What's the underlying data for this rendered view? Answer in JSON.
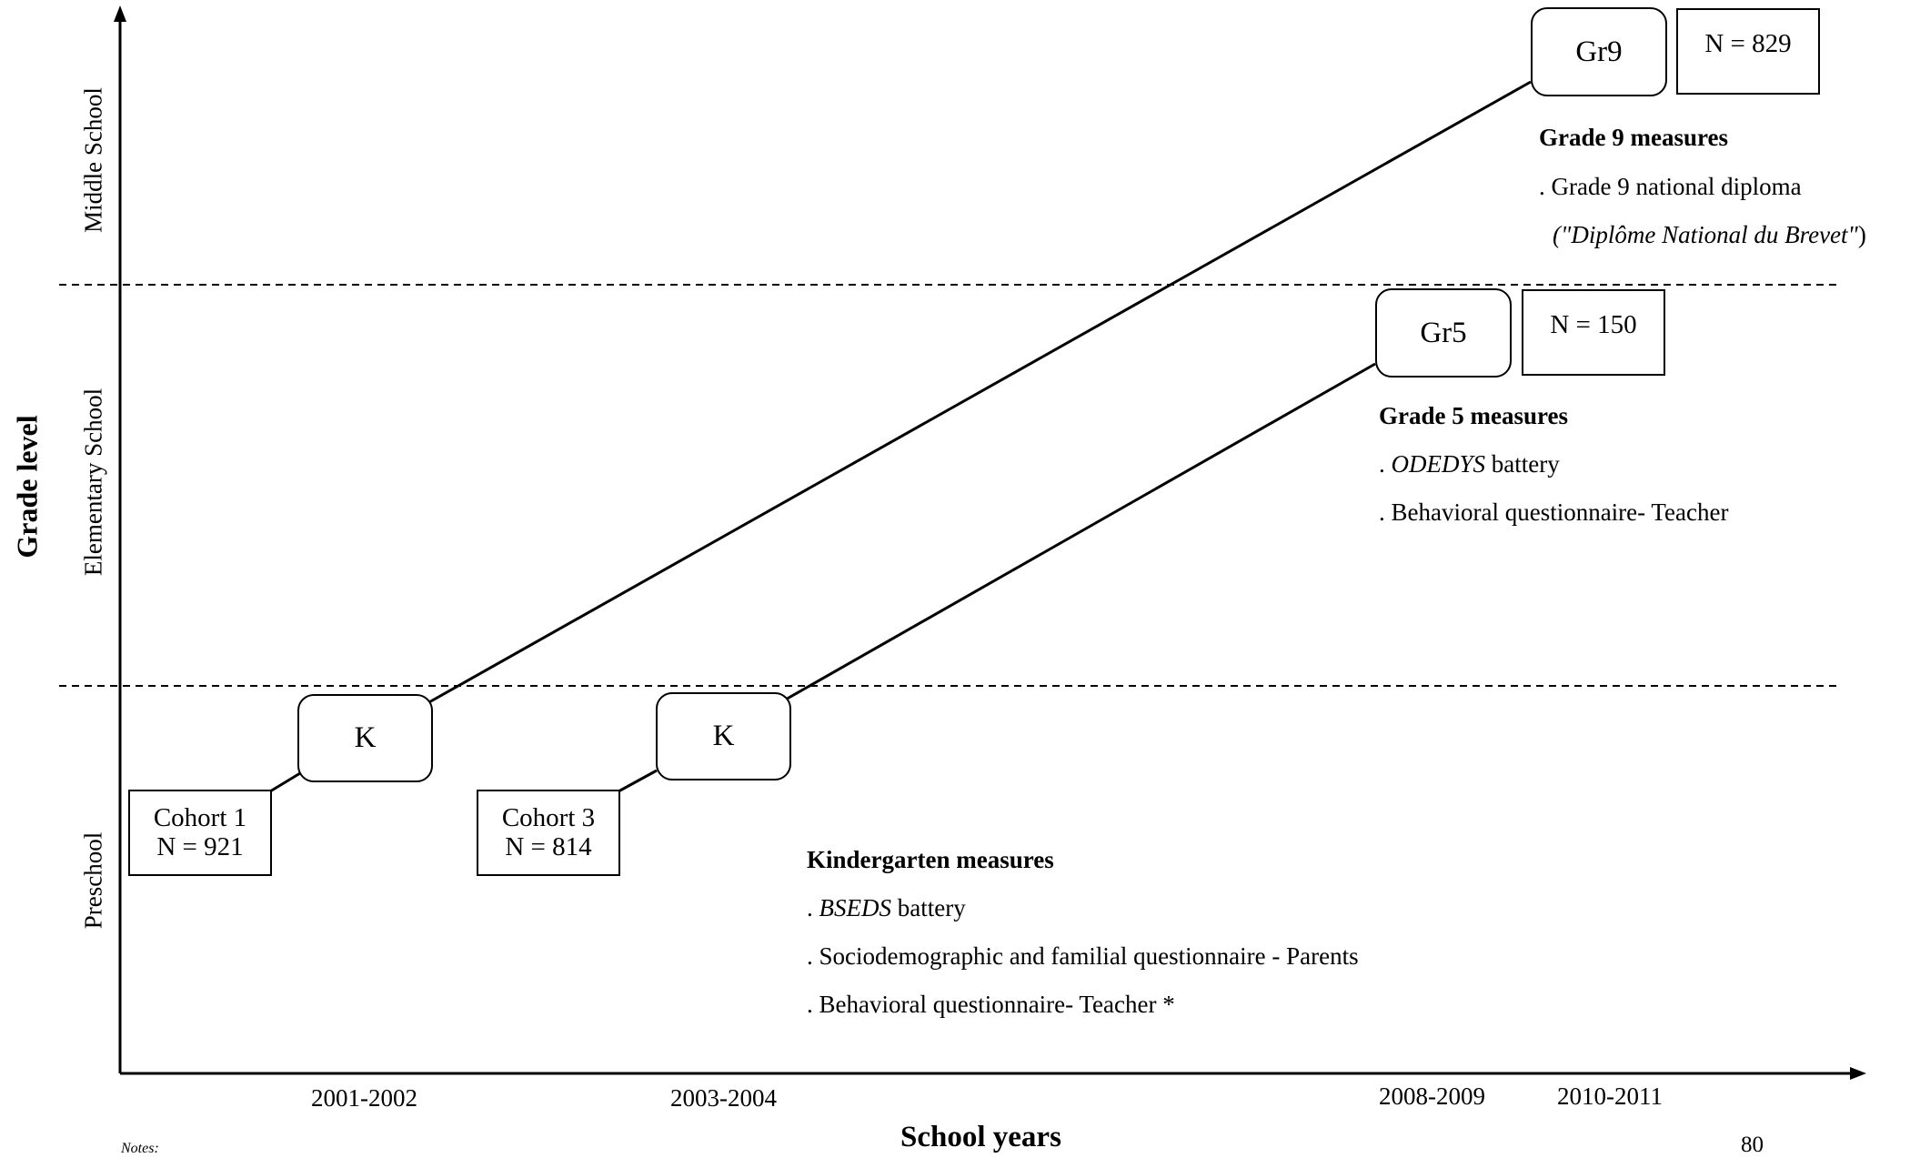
{
  "axes": {
    "y_title": "Grade level",
    "x_title": "School years",
    "y_levels": [
      "Middle School",
      "Elementary School",
      "Preschool"
    ],
    "x_ticks": [
      "2001-2002",
      "2003-2004",
      "2008-2009",
      "2010-2011"
    ]
  },
  "nodes": {
    "k1": "K",
    "k2": "K",
    "gr5": "Gr5",
    "gr9": "Gr9",
    "cohort1": {
      "line1": "Cohort 1",
      "line2": "N = 921"
    },
    "cohort3": {
      "line1": "Cohort 3",
      "line2": "N = 814"
    },
    "n150": "N = 150",
    "n829": "N = 829"
  },
  "grade9_measures": {
    "title": "Grade 9 measures",
    "line1": ". Grade 9 national diploma",
    "line2_open": "(\"",
    "line2_italic": "Diplôme National du Brevet\"",
    "line2_close": ")"
  },
  "grade5_measures": {
    "title": "Grade 5 measures",
    "line1_prefix": ". ",
    "line1_italic": "ODEDYS",
    "line1_suffix": " battery",
    "line2": ". Behavioral questionnaire- Teacher"
  },
  "kindergarten_measures": {
    "title": "Kindergarten measures",
    "line1_prefix": ". ",
    "line1_italic": "BSEDS",
    "line1_suffix": " battery",
    "line2": ". Sociodemographic and familial questionnaire - Parents",
    "line3": ". Behavioral questionnaire- Teacher *"
  },
  "footer": {
    "notes": "Notes:",
    "page_number": "80"
  }
}
